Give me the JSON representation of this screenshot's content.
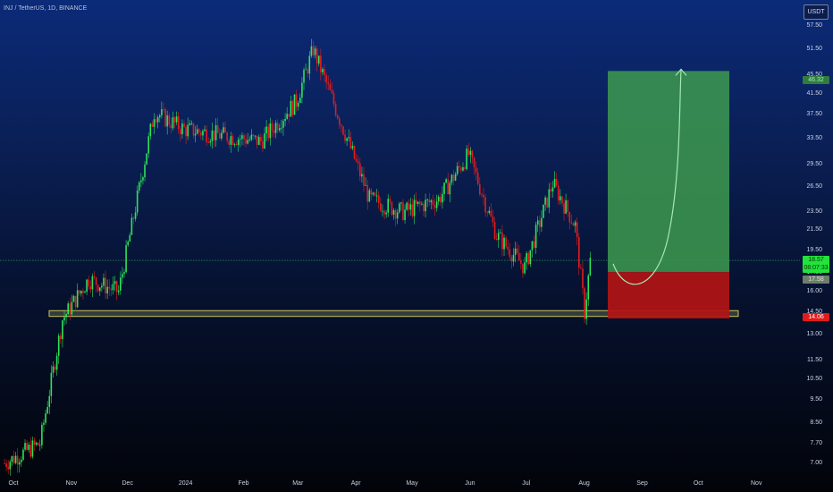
{
  "header": {
    "title": "INJ / TetherUS, 1D, BINANCE"
  },
  "currency_button": "USDT",
  "price_axis": {
    "labels": [
      "57.50",
      "51.50",
      "45.50",
      "41.50",
      "37.50",
      "33.50",
      "29.50",
      "26.50",
      "23.50",
      "21.50",
      "19.50",
      "17.50",
      "16.00",
      "14.50",
      "13.00",
      "11.50",
      "10.50",
      "9.50",
      "8.50",
      "7.70",
      "7.00"
    ],
    "scale": "log"
  },
  "time_axis": {
    "labels": [
      "Oct",
      "Nov",
      "Dec",
      "2024",
      "Feb",
      "Mar",
      "Apr",
      "May",
      "Jun",
      "Jul",
      "Aug",
      "Sep",
      "Oct",
      "Nov"
    ]
  },
  "price_tags": {
    "target": "46.32",
    "current_price": "18.57",
    "countdown": "08:07:33",
    "entry": "17.58",
    "stop": "14.06"
  },
  "colors": {
    "bull": "#2ee35a",
    "bear": "#e21d1d",
    "profit_zone": "#3d9a4f",
    "loss_zone": "#b21414",
    "support_zone": "#8a8f5a",
    "price_line": "#2ee35a"
  },
  "chart_data": {
    "type": "candlestick",
    "symbol": "INJ / TetherUS",
    "interval": "1D",
    "exchange": "BINANCE",
    "ylim": [
      6.7,
      63
    ],
    "y_scale": "log",
    "x_range": [
      "2023-10-01",
      "2024-11-20"
    ],
    "key_closes": [
      {
        "date": "2023-10-01",
        "close": 7.0
      },
      {
        "date": "2023-10-20",
        "close": 7.7
      },
      {
        "date": "2023-11-01",
        "close": 14.0
      },
      {
        "date": "2023-11-15",
        "close": 17.0
      },
      {
        "date": "2023-12-01",
        "close": 16.0
      },
      {
        "date": "2023-12-10",
        "close": 24.0
      },
      {
        "date": "2023-12-20",
        "close": 38.0
      },
      {
        "date": "2024-01-05",
        "close": 35.0
      },
      {
        "date": "2024-01-25",
        "close": 34.0
      },
      {
        "date": "2024-02-15",
        "close": 33.0
      },
      {
        "date": "2024-03-05",
        "close": 40.0
      },
      {
        "date": "2024-03-14",
        "close": 51.5
      },
      {
        "date": "2024-04-01",
        "close": 33.5
      },
      {
        "date": "2024-04-13",
        "close": 25.0
      },
      {
        "date": "2024-05-01",
        "close": 23.5
      },
      {
        "date": "2024-05-20",
        "close": 25.0
      },
      {
        "date": "2024-06-05",
        "close": 31.0
      },
      {
        "date": "2024-06-20",
        "close": 21.0
      },
      {
        "date": "2024-07-05",
        "close": 18.0
      },
      {
        "date": "2024-07-20",
        "close": 27.0
      },
      {
        "date": "2024-08-01",
        "close": 22.0
      },
      {
        "date": "2024-08-06",
        "close": 14.5
      },
      {
        "date": "2024-08-09",
        "close": 18.57
      }
    ],
    "support_zone": {
      "from": 14.2,
      "to": 14.6
    },
    "horizontal_line": 18.6,
    "long_position": {
      "entry": 17.58,
      "target": 46.32,
      "stop": 14.06
    }
  }
}
